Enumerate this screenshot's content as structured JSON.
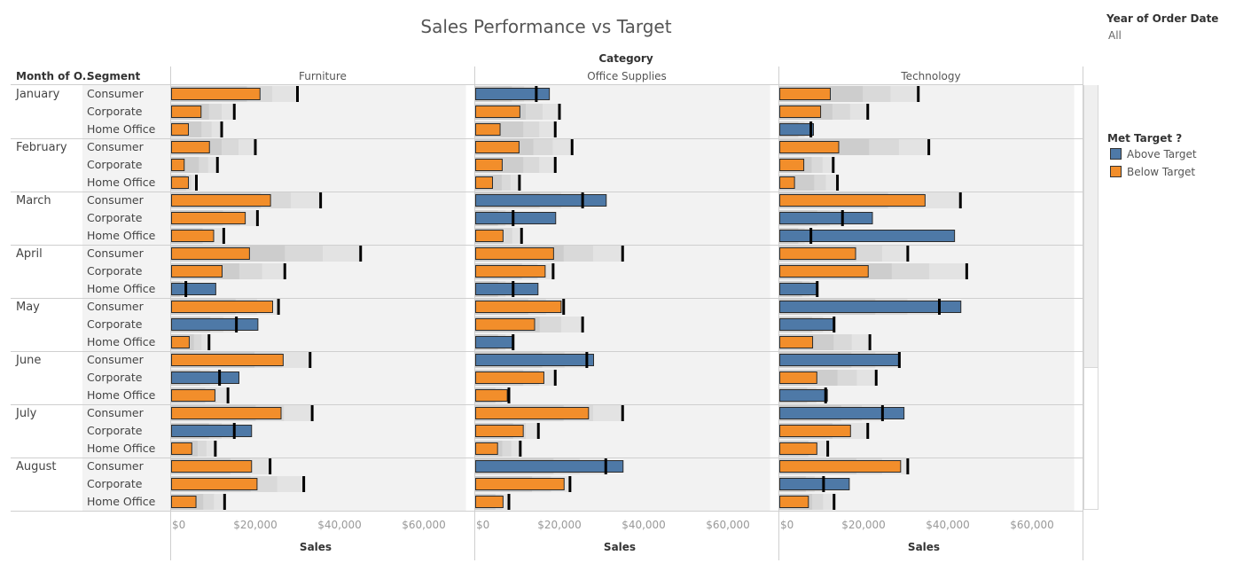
{
  "title": "Sales Performance vs Target",
  "filter": {
    "title": "Year of Order Date",
    "value": "All"
  },
  "legend": {
    "title": "Met Target ?",
    "items": [
      {
        "label": "Above Target",
        "color": "#4e79a7"
      },
      {
        "label": "Below Target",
        "color": "#f28e2b"
      }
    ]
  },
  "chart_data": {
    "type": "bar",
    "subtype": "bullet",
    "column_header": "Category",
    "row_headers": [
      "Month of O..",
      "Segment"
    ],
    "categories": [
      "Furniture",
      "Office Supplies",
      "Technology"
    ],
    "months": [
      "January",
      "February",
      "March",
      "April",
      "May",
      "June",
      "July",
      "August"
    ],
    "segments": [
      "Consumer",
      "Corporate",
      "Home Office"
    ],
    "xlabel": "Sales",
    "xlim": [
      0,
      70000
    ],
    "xticks": [
      0,
      20000,
      40000,
      60000
    ],
    "xtick_labels": [
      "$0",
      "$20,000",
      "$40,000",
      "$60,000"
    ],
    "colors": {
      "above": "#4e79a7",
      "below": "#f28e2b"
    },
    "values": {
      "Furniture": [
        [
          [
            21000,
            30000
          ],
          [
            7000,
            15000
          ],
          [
            4000,
            12000
          ]
        ],
        [
          [
            9000,
            20000
          ],
          [
            3000,
            11000
          ],
          [
            4000,
            6000
          ]
        ],
        [
          [
            23500,
            35500
          ],
          [
            17500,
            20500
          ],
          [
            10000,
            12500
          ]
        ],
        [
          [
            18500,
            45000
          ],
          [
            12000,
            27000
          ],
          [
            10500,
            3500
          ]
        ],
        [
          [
            24000,
            25500
          ],
          [
            20500,
            15500
          ],
          [
            4200,
            9000
          ]
        ],
        [
          [
            26500,
            33000
          ],
          [
            16000,
            11500
          ],
          [
            10300,
            13500
          ]
        ],
        [
          [
            26000,
            33500
          ],
          [
            19000,
            15000
          ],
          [
            4800,
            10500
          ]
        ],
        [
          [
            19000,
            23500
          ],
          [
            20300,
            31500
          ],
          [
            5800,
            12700
          ]
        ]
      ],
      "Office Supplies": [
        [
          [
            17500,
            14500
          ],
          [
            10500,
            20000
          ],
          [
            5800,
            19000
          ]
        ],
        [
          [
            10300,
            23000
          ],
          [
            6300,
            19000
          ],
          [
            4000,
            10500
          ]
        ],
        [
          [
            31000,
            25500
          ],
          [
            19000,
            9000
          ],
          [
            6500,
            11000
          ]
        ],
        [
          [
            18500,
            35000
          ],
          [
            16500,
            18500
          ],
          [
            14800,
            9000
          ]
        ],
        [
          [
            20300,
            21000
          ],
          [
            14000,
            25500
          ],
          [
            9000,
            9000
          ]
        ],
        [
          [
            28000,
            26500
          ],
          [
            16200,
            19000
          ],
          [
            7500,
            8000
          ]
        ],
        [
          [
            26800,
            35000
          ],
          [
            11300,
            15000
          ],
          [
            5200,
            10700
          ]
        ],
        [
          [
            35000,
            31000
          ],
          [
            21000,
            22500
          ],
          [
            6500,
            8000
          ]
        ]
      ],
      "Technology": [
        [
          [
            12000,
            33000
          ],
          [
            9700,
            21000
          ],
          [
            8000,
            7500
          ]
        ],
        [
          [
            14000,
            35500
          ],
          [
            5700,
            12800
          ],
          [
            3500,
            13800
          ]
        ],
        [
          [
            34500,
            43000
          ],
          [
            22000,
            15000
          ],
          [
            41500,
            7500
          ]
        ],
        [
          [
            18000,
            30500
          ],
          [
            21000,
            44500
          ],
          [
            9000,
            9000
          ]
        ],
        [
          [
            43000,
            38000
          ],
          [
            13000,
            13000
          ],
          [
            7800,
            21500
          ]
        ],
        [
          [
            28500,
            28500
          ],
          [
            8800,
            23000
          ],
          [
            11300,
            11000
          ]
        ],
        [
          [
            29500,
            24500
          ],
          [
            16800,
            21000
          ],
          [
            8800,
            11500
          ]
        ],
        [
          [
            28700,
            30500
          ],
          [
            16500,
            10500
          ],
          [
            6800,
            13000
          ]
        ]
      ]
    }
  }
}
